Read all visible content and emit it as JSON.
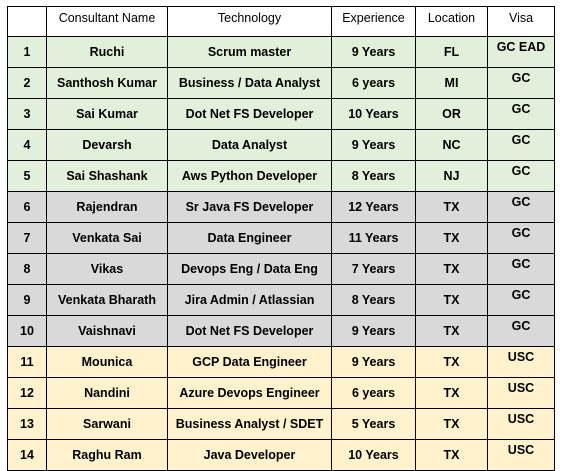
{
  "table": {
    "headers": [
      "",
      "Consultant Name",
      "Technology",
      "Experience",
      "Location",
      "Visa"
    ],
    "row_colors": {
      "green": "#e2efda",
      "gray": "#d9d9d9",
      "yellow": "#fff2cc"
    },
    "rows": [
      {
        "num": "1",
        "name": "Ruchi",
        "tech": "Scrum master",
        "exp": "9 Years",
        "loc": "FL",
        "visa": "GC EAD",
        "group": "green"
      },
      {
        "num": "2",
        "name": "Santhosh Kumar",
        "tech": "Business / Data Analyst",
        "exp": "6 years",
        "loc": "MI",
        "visa": "GC",
        "group": "green"
      },
      {
        "num": "3",
        "name": "Sai Kumar",
        "tech": "Dot Net FS Developer",
        "exp": "10 Years",
        "loc": "OR",
        "visa": "GC",
        "group": "green"
      },
      {
        "num": "4",
        "name": "Devarsh",
        "tech": "Data Analyst",
        "exp": "9 Years",
        "loc": "NC",
        "visa": "GC",
        "group": "green"
      },
      {
        "num": "5",
        "name": "Sai Shashank",
        "tech": "Aws Python Developer",
        "exp": "8 Years",
        "loc": "NJ",
        "visa": "GC",
        "group": "green"
      },
      {
        "num": "6",
        "name": "Rajendran",
        "tech": "Sr Java FS Developer",
        "exp": "12 Years",
        "loc": "TX",
        "visa": "GC",
        "group": "gray"
      },
      {
        "num": "7",
        "name": "Venkata Sai",
        "tech": "Data Engineer",
        "exp": "11 Years",
        "loc": "TX",
        "visa": "GC",
        "group": "gray"
      },
      {
        "num": "8",
        "name": "Vikas",
        "tech": "Devops Eng / Data Eng",
        "exp": "7 Years",
        "loc": "TX",
        "visa": "GC",
        "group": "gray"
      },
      {
        "num": "9",
        "name": "Venkata Bharath",
        "tech": "Jira Admin / Atlassian",
        "exp": "8 Years",
        "loc": "TX",
        "visa": "GC",
        "group": "gray"
      },
      {
        "num": "10",
        "name": "Vaishnavi",
        "tech": "Dot Net FS Developer",
        "exp": "9 Years",
        "loc": "TX",
        "visa": "GC",
        "group": "gray"
      },
      {
        "num": "11",
        "name": "Mounica",
        "tech": "GCP Data Engineer",
        "exp": "9 Years",
        "loc": "TX",
        "visa": "USC",
        "group": "yellow"
      },
      {
        "num": "12",
        "name": "Nandini",
        "tech": "Azure Devops Engineer",
        "exp": "6 years",
        "loc": "TX",
        "visa": "USC",
        "group": "yellow"
      },
      {
        "num": "13",
        "name": "Sarwani",
        "tech": "Business Analyst / SDET",
        "exp": "5 Years",
        "loc": "TX",
        "visa": "USC",
        "group": "yellow"
      },
      {
        "num": "14",
        "name": "Raghu Ram",
        "tech": "Java Developer",
        "exp": "10 Years",
        "loc": "TX",
        "visa": "USC",
        "group": "yellow"
      }
    ]
  }
}
